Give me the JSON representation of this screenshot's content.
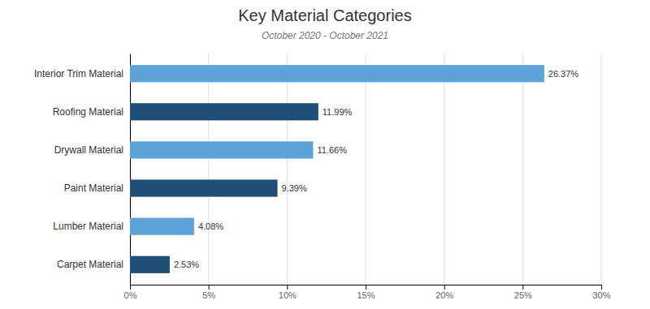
{
  "chart_data": {
    "type": "bar",
    "orientation": "horizontal",
    "title": "Key Material Categories",
    "subtitle": "October 2020 - October 2021",
    "categories": [
      "Carpet Material",
      "Lumber Material",
      "Paint Material",
      "Drywall Material",
      "Roofing Material",
      "Interior Trim Material"
    ],
    "values": [
      2.53,
      4.08,
      9.39,
      11.66,
      11.99,
      26.37
    ],
    "value_labels": [
      "2.53%",
      "4.08%",
      "9.39%",
      "11.66%",
      "11.99%",
      "26.37%"
    ],
    "colors": [
      "#1f4e79",
      "#5ba3d9",
      "#1f4e79",
      "#5ba3d9",
      "#1f4e79",
      "#5ba3d9"
    ],
    "data_labels": true,
    "xlim": [
      0,
      30
    ],
    "xticks": [
      {
        "value": 0,
        "label": "0%"
      },
      {
        "value": 5,
        "label": "5%"
      },
      {
        "value": 10,
        "label": "10%"
      },
      {
        "value": 15,
        "label": "15%"
      },
      {
        "value": 20,
        "label": "20%"
      },
      {
        "value": 25,
        "label": "25%"
      },
      {
        "value": 30,
        "label": "30%"
      }
    ],
    "grid": true
  }
}
